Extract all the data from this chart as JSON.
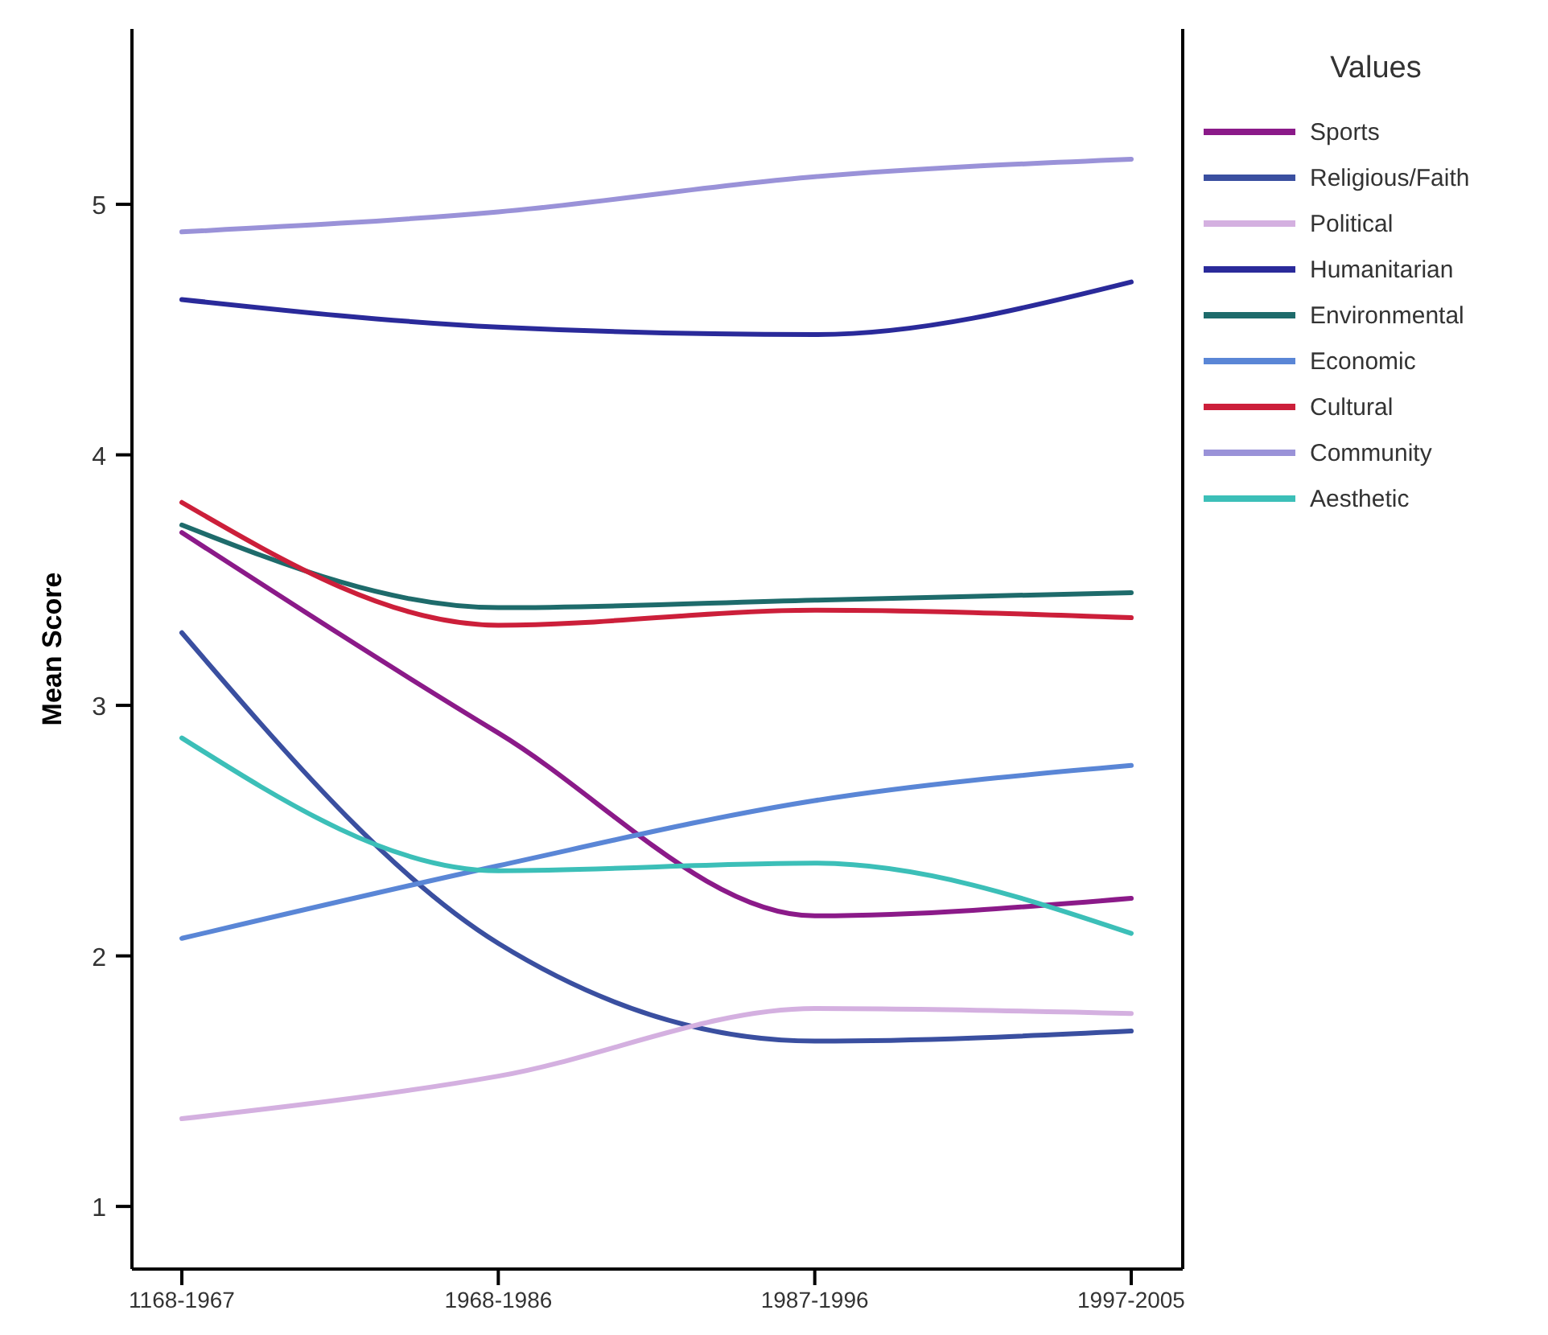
{
  "chart_data": {
    "type": "line",
    "ylabel": "Mean Score",
    "legend_title": "Values",
    "categories": [
      "1168-1967",
      "1968-1986",
      "1987-1996",
      "1997-2005"
    ],
    "ylim": [
      0.75,
      5.7
    ],
    "yticks": [
      1,
      2,
      3,
      4,
      5
    ],
    "grid": false,
    "legend": "right",
    "marker": "none",
    "line_style": "solid",
    "series": [
      {
        "name": "Sports",
        "color": "#8b1a89",
        "values": [
          3.69,
          2.89,
          2.16,
          2.23
        ]
      },
      {
        "name": "Religious/Faith",
        "color": "#3a4fa0",
        "values": [
          3.29,
          2.05,
          1.66,
          1.7
        ]
      },
      {
        "name": "Political",
        "color": "#d4b0e0",
        "values": [
          1.35,
          1.52,
          1.79,
          1.77
        ]
      },
      {
        "name": "Humanitarian",
        "color": "#2a2a9a",
        "values": [
          4.62,
          4.51,
          4.48,
          4.69
        ]
      },
      {
        "name": "Environmental",
        "color": "#1e6b6b",
        "values": [
          3.72,
          3.39,
          3.42,
          3.45
        ]
      },
      {
        "name": "Economic",
        "color": "#5a86d6",
        "values": [
          2.07,
          2.36,
          2.62,
          2.76
        ]
      },
      {
        "name": "Cultural",
        "color": "#cc1f3a",
        "values": [
          3.81,
          3.32,
          3.38,
          3.35
        ]
      },
      {
        "name": "Community",
        "color": "#9a92d8",
        "values": [
          4.89,
          4.97,
          5.11,
          5.18
        ]
      },
      {
        "name": "Aesthetic",
        "color": "#3cbfb8",
        "values": [
          2.87,
          2.34,
          2.37,
          2.09
        ]
      }
    ]
  }
}
